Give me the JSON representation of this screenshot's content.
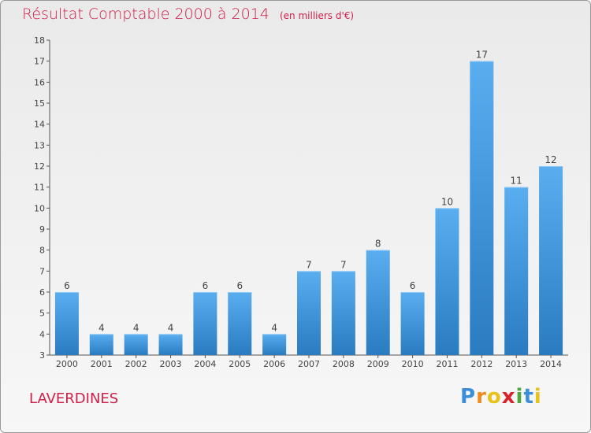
{
  "chart_data": {
    "type": "bar",
    "title": "Résultat Comptable 2000 à 2014",
    "unit_note": "(en milliers d'€)",
    "categories": [
      "2000",
      "2001",
      "2002",
      "2003",
      "2004",
      "2005",
      "2006",
      "2007",
      "2008",
      "2009",
      "2010",
      "2011",
      "2012",
      "2013",
      "2014"
    ],
    "values": [
      6,
      4,
      4,
      4,
      6,
      6,
      4,
      7,
      7,
      8,
      6,
      10,
      17,
      11,
      12
    ],
    "ylim": [
      3,
      18
    ],
    "yticks": [
      3,
      4,
      5,
      6,
      7,
      8,
      9,
      10,
      11,
      12,
      13,
      14,
      15,
      16,
      17,
      18
    ],
    "xlabel": "",
    "ylabel": "",
    "grid": false,
    "bar_color_top": "#5aaef0",
    "bar_color_bottom": "#2a7bc0"
  },
  "commune": "LAVERDINES",
  "logo": {
    "letters": [
      "P",
      "r",
      "o",
      "x",
      "i",
      "t",
      "i"
    ],
    "colors": [
      "#3b8fd8",
      "#f08a1c",
      "#e7c21a",
      "#d8232a",
      "#4aa83d",
      "#3b8fd8",
      "#e7c21a"
    ]
  },
  "colors": {
    "accent": "#d0204a"
  }
}
